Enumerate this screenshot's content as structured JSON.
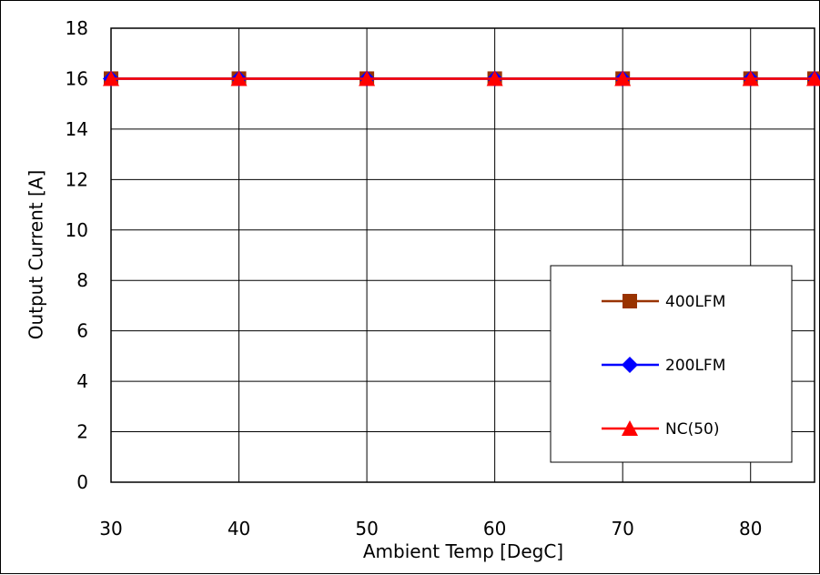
{
  "chart_data": {
    "type": "line",
    "xlabel": "Ambient Temp [DegC]",
    "ylabel": "Output Current [A]",
    "xlim": [
      30,
      85
    ],
    "ylim": [
      0,
      18
    ],
    "xticks": [
      30,
      40,
      50,
      60,
      70,
      80
    ],
    "yticks": [
      0,
      2,
      4,
      6,
      8,
      10,
      12,
      14,
      16,
      18
    ],
    "x": [
      30,
      40,
      50,
      60,
      70,
      80,
      85
    ],
    "grid": true,
    "legend_position": "lower-right",
    "series": [
      {
        "name": "400LFM",
        "values": [
          16,
          16,
          16,
          16,
          16,
          16,
          16
        ],
        "color": "#993300",
        "marker": "square"
      },
      {
        "name": "200LFM",
        "values": [
          16,
          16,
          16,
          16,
          16,
          16,
          16
        ],
        "color": "#0000ff",
        "marker": "diamond"
      },
      {
        "name": "NC(50)",
        "values": [
          16,
          16,
          16,
          16,
          16,
          16,
          16
        ],
        "color": "#ff0000",
        "marker": "triangle"
      }
    ]
  }
}
